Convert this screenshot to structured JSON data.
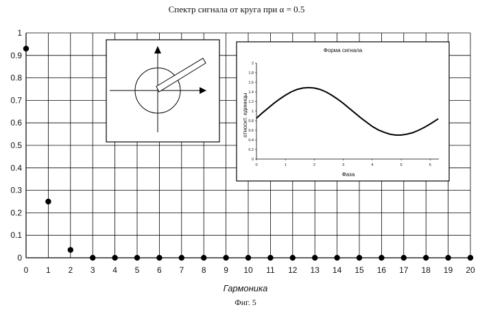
{
  "title": "Спектр сигнала от круга при α = 0.5",
  "caption": "Фиг. 5",
  "chart_data": [
    {
      "type": "scatter",
      "xlabel": "Гармоника",
      "x": [
        0,
        1,
        2,
        3,
        4,
        5,
        6,
        7,
        8,
        9,
        10,
        11,
        12,
        13,
        14,
        15,
        16,
        17,
        18,
        19,
        20
      ],
      "y": [
        0.93,
        0.25,
        0.035,
        0,
        0,
        0,
        0,
        0,
        0,
        0,
        0,
        0,
        0,
        0,
        0,
        0,
        0,
        0,
        0,
        0,
        0
      ],
      "xlim": [
        0,
        20
      ],
      "ylim": [
        0,
        1
      ],
      "x_ticks": [
        0,
        1,
        2,
        3,
        4,
        5,
        6,
        7,
        8,
        9,
        10,
        11,
        12,
        13,
        14,
        15,
        16,
        17,
        18,
        19,
        20
      ],
      "y_ticks": [
        0,
        0.1,
        0.2,
        0.3,
        0.4,
        0.5,
        0.6,
        0.7,
        0.8,
        0.9,
        1
      ],
      "grid": true,
      "color": "#000000"
    },
    {
      "type": "line",
      "title": "Форма сигнала",
      "xlabel": "Фаза",
      "ylabel": "относит. единицы",
      "x": [
        0,
        0.2,
        0.4,
        0.6,
        0.8,
        1.0,
        1.2,
        1.4,
        1.6,
        1.8,
        2.0,
        2.2,
        2.4,
        2.6,
        2.8,
        3.0,
        3.2,
        3.4,
        3.6,
        3.8,
        4.0,
        4.2,
        4.4,
        4.6,
        4.8,
        5.0,
        5.2,
        5.4,
        5.6,
        5.8,
        6.0,
        6.28
      ],
      "y": [
        0.85,
        0.96,
        1.06,
        1.16,
        1.25,
        1.33,
        1.4,
        1.45,
        1.48,
        1.49,
        1.48,
        1.45,
        1.4,
        1.33,
        1.25,
        1.16,
        1.06,
        0.96,
        0.86,
        0.77,
        0.68,
        0.61,
        0.56,
        0.52,
        0.5,
        0.5,
        0.52,
        0.55,
        0.6,
        0.66,
        0.73,
        0.84
      ],
      "xlim": [
        0,
        6.3
      ],
      "ylim": [
        0,
        2
      ],
      "x_ticks": [
        0,
        1,
        2,
        3,
        4,
        5,
        6
      ],
      "y_ticks": [
        0,
        0.2,
        0.4,
        0.6,
        0.8,
        1,
        1.2,
        1.4,
        1.6,
        1.8,
        2
      ],
      "grid": false,
      "color": "#000000"
    }
  ]
}
